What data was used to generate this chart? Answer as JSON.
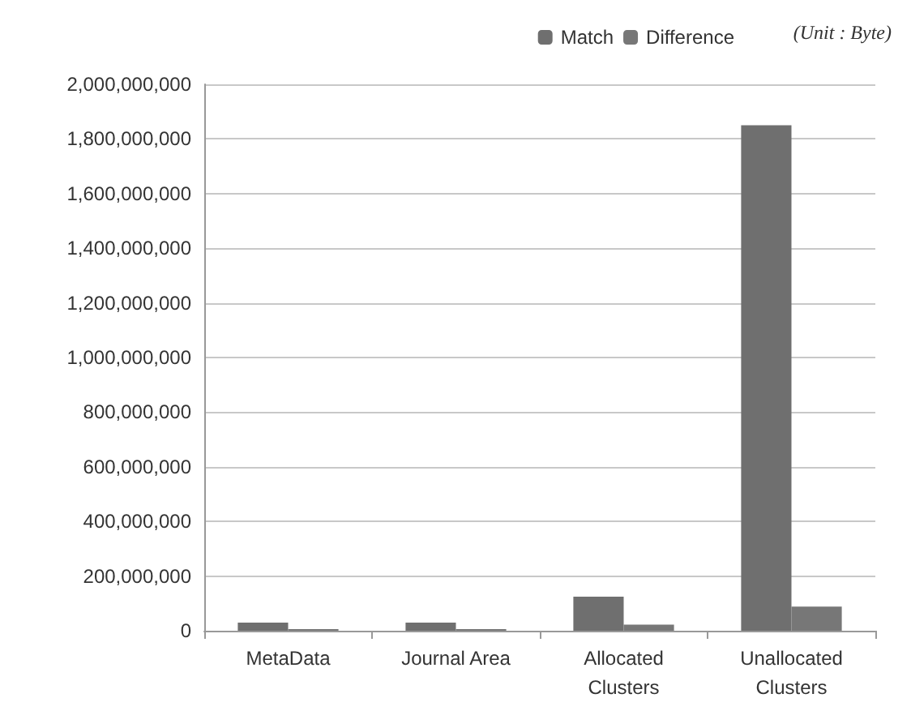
{
  "chart_data": {
    "type": "bar",
    "categories": [
      "MetaData",
      "Journal Area",
      "Allocated\nClusters",
      "Unallocated\nClusters"
    ],
    "series": [
      {
        "name": "Match",
        "color": "#6f6f6f",
        "values": [
          30000000,
          30000000,
          125000000,
          1850000000
        ]
      },
      {
        "name": "Difference",
        "color": "#777777",
        "values": [
          6000000,
          6000000,
          22000000,
          88000000
        ]
      }
    ],
    "ylim": [
      0,
      2000000000
    ],
    "yticks": [
      0,
      {
        "value": 200000000,
        "label": "200,000,000"
      },
      {
        "value": 400000000,
        "label": "400,000,000"
      },
      {
        "value": 600000000,
        "label": "600,000,000"
      },
      {
        "value": 800000000,
        "label": "800,000,000"
      },
      {
        "value": 1000000000,
        "label": "1,000,000,000"
      },
      {
        "value": 1200000000,
        "label": "1,200,000,000"
      },
      {
        "value": 1400000000,
        "label": "1,400,000,000"
      },
      {
        "value": 1600000000,
        "label": "1,600,000,000"
      },
      {
        "value": 1800000000,
        "label": "1,800,000,000"
      },
      {
        "value": 2000000000,
        "label": "2,000,000,000"
      }
    ],
    "grid": "y",
    "legend": "top right",
    "annotations": [
      "(Unit : Byte)"
    ]
  }
}
